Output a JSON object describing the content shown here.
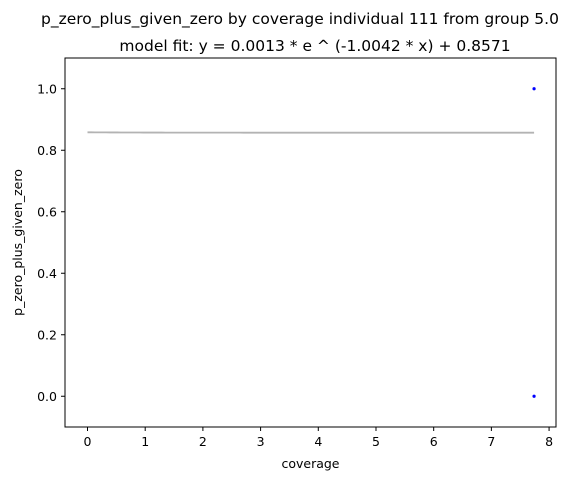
{
  "chart_data": {
    "type": "scatter",
    "title": "p_zero_plus_given_zero by coverage individual 111 from group 5.0",
    "subtitle": "model fit: y = 0.0013 * e ^ (-1.0042 * x) + 0.8571",
    "xlabel": "coverage",
    "ylabel": "p_zero_plus_given_zero",
    "xlim": [
      -0.39,
      8.12
    ],
    "ylim": [
      -0.1,
      1.1
    ],
    "x_ticks": [
      0,
      1,
      2,
      3,
      4,
      5,
      6,
      7,
      8
    ],
    "x_tick_labels": [
      "0",
      "1",
      "2",
      "3",
      "4",
      "5",
      "6",
      "7",
      "8"
    ],
    "y_ticks": [
      0.0,
      0.2,
      0.4,
      0.6,
      0.8,
      1.0
    ],
    "y_tick_labels": [
      "0.0",
      "0.2",
      "0.4",
      "0.6",
      "0.8",
      "1.0"
    ],
    "grid": false,
    "points": [
      {
        "x": 7.74,
        "y": 1.0
      },
      {
        "x": 7.74,
        "y": 0.0
      }
    ],
    "fit": {
      "a": 0.0013,
      "b": -1.0042,
      "c": 0.8571,
      "x_start": 0,
      "x_end": 7.74
    },
    "colors": {
      "points": "#0000ff",
      "fit_line": "#b3b3b3",
      "axes": "#000000"
    }
  }
}
